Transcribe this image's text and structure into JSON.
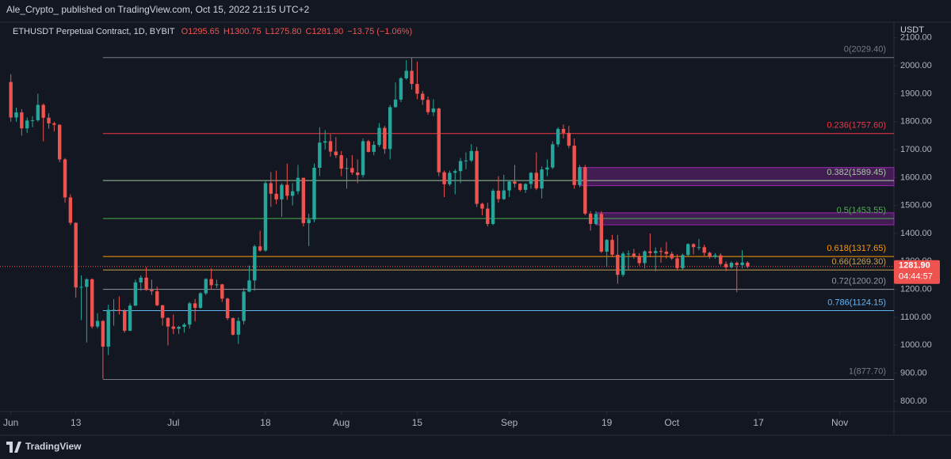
{
  "header": {
    "publisher": "Ale_Crypto_ published on TradingView.com, Oct 15, 2022 21:15 UTC+2",
    "footer": "TradingView"
  },
  "chart_data": {
    "type": "candlestick",
    "legend": {
      "symbol": "ETHUSDT Perpetual Contract, 1D, BYBIT",
      "items": [
        "O1295.65",
        "H1300.75",
        "L1275.80",
        "C1281.90",
        "−13.75 (−1.06%)"
      ]
    },
    "y_unit": "USDT",
    "last_price_label": "1281.90",
    "countdown": "04:44:57",
    "up_color": "#26a69a",
    "down_color": "#ef5350",
    "x": [
      "2022-06-01",
      "2022-06-02",
      "2022-06-03",
      "2022-06-04",
      "2022-06-05",
      "2022-06-06",
      "2022-06-07",
      "2022-06-08",
      "2022-06-09",
      "2022-06-10",
      "2022-06-11",
      "2022-06-12",
      "2022-06-13",
      "2022-06-14",
      "2022-06-15",
      "2022-06-16",
      "2022-06-17",
      "2022-06-18",
      "2022-06-19",
      "2022-06-20",
      "2022-06-21",
      "2022-06-22",
      "2022-06-23",
      "2022-06-24",
      "2022-06-25",
      "2022-06-26",
      "2022-06-27",
      "2022-06-28",
      "2022-06-29",
      "2022-06-30",
      "2022-07-01",
      "2022-07-02",
      "2022-07-03",
      "2022-07-04",
      "2022-07-05",
      "2022-07-06",
      "2022-07-07",
      "2022-07-08",
      "2022-07-09",
      "2022-07-10",
      "2022-07-11",
      "2022-07-12",
      "2022-07-13",
      "2022-07-14",
      "2022-07-15",
      "2022-07-16",
      "2022-07-17",
      "2022-07-18",
      "2022-07-19",
      "2022-07-20",
      "2022-07-21",
      "2022-07-22",
      "2022-07-23",
      "2022-07-24",
      "2022-07-25",
      "2022-07-26",
      "2022-07-27",
      "2022-07-28",
      "2022-07-29",
      "2022-07-30",
      "2022-07-31",
      "2022-08-01",
      "2022-08-02",
      "2022-08-03",
      "2022-08-04",
      "2022-08-05",
      "2022-08-06",
      "2022-08-07",
      "2022-08-08",
      "2022-08-09",
      "2022-08-10",
      "2022-08-11",
      "2022-08-12",
      "2022-08-13",
      "2022-08-14",
      "2022-08-15",
      "2022-08-16",
      "2022-08-17",
      "2022-08-18",
      "2022-08-19",
      "2022-08-20",
      "2022-08-21",
      "2022-08-22",
      "2022-08-23",
      "2022-08-24",
      "2022-08-25",
      "2022-08-26",
      "2022-08-27",
      "2022-08-28",
      "2022-08-29",
      "2022-08-30",
      "2022-08-31",
      "2022-09-01",
      "2022-09-02",
      "2022-09-03",
      "2022-09-04",
      "2022-09-05",
      "2022-09-06",
      "2022-09-07",
      "2022-09-08",
      "2022-09-09",
      "2022-09-10",
      "2022-09-11",
      "2022-09-12",
      "2022-09-13",
      "2022-09-14",
      "2022-09-15",
      "2022-09-16",
      "2022-09-17",
      "2022-09-18",
      "2022-09-19",
      "2022-09-20",
      "2022-09-21",
      "2022-09-22",
      "2022-09-23",
      "2022-09-24",
      "2022-09-25",
      "2022-09-26",
      "2022-09-27",
      "2022-09-28",
      "2022-09-29",
      "2022-09-30",
      "2022-10-01",
      "2022-10-02",
      "2022-10-03",
      "2022-10-04",
      "2022-10-05",
      "2022-10-06",
      "2022-10-07",
      "2022-10-08",
      "2022-10-09",
      "2022-10-10",
      "2022-10-11",
      "2022-10-12",
      "2022-10-13",
      "2022-10-14",
      "2022-10-15"
    ],
    "open": [
      1942,
      1815,
      1833,
      1776,
      1804,
      1805,
      1860,
      1814,
      1794,
      1789,
      1665,
      1529,
      1438,
      1207,
      1209,
      1236,
      1067,
      1087,
      995,
      1127,
      1127,
      1123,
      1052,
      1142,
      1225,
      1242,
      1198,
      1193,
      1143,
      1098,
      1067,
      1059,
      1066,
      1074,
      1150,
      1134,
      1186,
      1237,
      1215,
      1218,
      1167,
      1097,
      1038,
      1087,
      1192,
      1232,
      1354,
      1339,
      1580,
      1542,
      1522,
      1574,
      1535,
      1551,
      1599,
      1437,
      1450,
      1635,
      1725,
      1730,
      1693,
      1680,
      1632,
      1634,
      1618,
      1609,
      1730,
      1692,
      1717,
      1778,
      1702,
      1852,
      1879,
      1955,
      1982,
      1935,
      1900,
      1878,
      1834,
      1847,
      1619,
      1576,
      1617,
      1623,
      1659,
      1661,
      1695,
      1506,
      1489,
      1434,
      1553,
      1523,
      1554,
      1586,
      1578,
      1556,
      1577,
      1617,
      1561,
      1629,
      1636,
      1719,
      1774,
      1760,
      1714,
      1573,
      1637,
      1471,
      1434,
      1470,
      1335,
      1377,
      1324,
      1252,
      1328,
      1328,
      1317,
      1294,
      1336,
      1330,
      1337,
      1335,
      1327,
      1311,
      1276,
      1323,
      1362,
      1351,
      1351,
      1331,
      1316,
      1322,
      1291,
      1279,
      1295,
      1287,
      1295.65
    ],
    "high": [
      1970,
      1850,
      1845,
      1815,
      1820,
      1900,
      1865,
      1830,
      1800,
      1790,
      1670,
      1540,
      1440,
      1250,
      1240,
      1240,
      1115,
      1090,
      1145,
      1165,
      1175,
      1130,
      1150,
      1235,
      1250,
      1280,
      1235,
      1210,
      1145,
      1100,
      1110,
      1070,
      1080,
      1155,
      1165,
      1190,
      1240,
      1275,
      1235,
      1220,
      1170,
      1100,
      1100,
      1205,
      1285,
      1360,
      1410,
      1590,
      1620,
      1625,
      1580,
      1650,
      1580,
      1645,
      1600,
      1470,
      1650,
      1780,
      1770,
      1755,
      1745,
      1695,
      1670,
      1680,
      1665,
      1740,
      1735,
      1730,
      1795,
      1785,
      1860,
      1940,
      1960,
      2020,
      2030,
      2015,
      1910,
      1890,
      1880,
      1850,
      1625,
      1625,
      1630,
      1670,
      1690,
      1720,
      1710,
      1510,
      1510,
      1560,
      1605,
      1610,
      1590,
      1645,
      1580,
      1580,
      1620,
      1690,
      1640,
      1665,
      1730,
      1780,
      1790,
      1785,
      1740,
      1645,
      1645,
      1480,
      1480,
      1480,
      1380,
      1395,
      1395,
      1335,
      1340,
      1345,
      1330,
      1340,
      1400,
      1350,
      1350,
      1370,
      1335,
      1325,
      1328,
      1365,
      1365,
      1380,
      1360,
      1335,
      1330,
      1330,
      1300,
      1300,
      1300,
      1340,
      1300.75
    ],
    "low": [
      1800,
      1800,
      1750,
      1760,
      1780,
      1800,
      1730,
      1775,
      1765,
      1655,
      1510,
      1430,
      1170,
      1090,
      1010,
      1060,
      1060,
      880,
      965,
      1070,
      1110,
      1045,
      1050,
      1140,
      1195,
      1195,
      1180,
      1140,
      1070,
      1000,
      1040,
      1040,
      1045,
      1060,
      1085,
      1130,
      1180,
      1200,
      1205,
      1155,
      1090,
      1035,
      1005,
      1075,
      1190,
      1195,
      1335,
      1335,
      1495,
      1505,
      1460,
      1520,
      1500,
      1540,
      1425,
      1355,
      1440,
      1605,
      1700,
      1675,
      1670,
      1605,
      1560,
      1610,
      1580,
      1600,
      1690,
      1680,
      1710,
      1685,
      1665,
      1850,
      1870,
      1950,
      1915,
      1880,
      1860,
      1825,
      1820,
      1605,
      1530,
      1570,
      1540,
      1580,
      1630,
      1655,
      1495,
      1465,
      1425,
      1430,
      1510,
      1520,
      1530,
      1565,
      1550,
      1545,
      1560,
      1555,
      1525,
      1605,
      1630,
      1710,
      1740,
      1705,
      1560,
      1565,
      1465,
      1410,
      1430,
      1330,
      1280,
      1315,
      1220,
      1245,
      1270,
      1310,
      1285,
      1275,
      1315,
      1265,
      1295,
      1310,
      1305,
      1270,
      1270,
      1318,
      1325,
      1340,
      1320,
      1310,
      1310,
      1285,
      1265,
      1275,
      1190,
      1275,
      1275.8
    ],
    "close": [
      1815,
      1833,
      1776,
      1804,
      1805,
      1860,
      1814,
      1794,
      1789,
      1665,
      1529,
      1438,
      1207,
      1209,
      1236,
      1067,
      1087,
      995,
      1127,
      1127,
      1123,
      1052,
      1142,
      1225,
      1242,
      1198,
      1193,
      1143,
      1098,
      1067,
      1059,
      1066,
      1074,
      1150,
      1134,
      1186,
      1237,
      1215,
      1218,
      1167,
      1097,
      1038,
      1087,
      1192,
      1232,
      1354,
      1339,
      1580,
      1542,
      1522,
      1574,
      1535,
      1551,
      1599,
      1437,
      1450,
      1635,
      1725,
      1730,
      1693,
      1680,
      1632,
      1634,
      1618,
      1609,
      1730,
      1692,
      1717,
      1778,
      1702,
      1852,
      1879,
      1955,
      1982,
      1935,
      1900,
      1878,
      1834,
      1847,
      1619,
      1576,
      1617,
      1623,
      1659,
      1661,
      1695,
      1506,
      1489,
      1434,
      1553,
      1523,
      1554,
      1586,
      1578,
      1556,
      1577,
      1617,
      1561,
      1629,
      1636,
      1719,
      1774,
      1760,
      1714,
      1573,
      1637,
      1471,
      1434,
      1470,
      1335,
      1377,
      1324,
      1252,
      1328,
      1328,
      1317,
      1294,
      1336,
      1330,
      1337,
      1335,
      1327,
      1311,
      1276,
      1323,
      1362,
      1351,
      1351,
      1331,
      1316,
      1322,
      1291,
      1279,
      1295,
      1287,
      1296,
      1281.9
    ],
    "xlim": [
      "2022-05-30",
      "2022-11-11"
    ],
    "xticks": [
      {
        "value": "2022-06-01",
        "label": "Jun"
      },
      {
        "value": "2022-06-13",
        "label": "13"
      },
      {
        "value": "2022-07-01",
        "label": "Jul"
      },
      {
        "value": "2022-07-18",
        "label": "18"
      },
      {
        "value": "2022-08-01",
        "label": "Aug"
      },
      {
        "value": "2022-08-15",
        "label": "15"
      },
      {
        "value": "2022-09-01",
        "label": "Sep"
      },
      {
        "value": "2022-09-19",
        "label": "19"
      },
      {
        "value": "2022-10-01",
        "label": "Oct"
      },
      {
        "value": "2022-10-17",
        "label": "17"
      },
      {
        "value": "2022-11-01",
        "label": "Nov"
      }
    ],
    "ylim": [
      763,
      2156
    ],
    "yticks": [
      {
        "value": 800,
        "label": "800.00"
      },
      {
        "value": 900,
        "label": "900.00"
      },
      {
        "value": 1000,
        "label": "1000.00"
      },
      {
        "value": 1100,
        "label": "1100.00"
      },
      {
        "value": 1200,
        "label": "1200.00"
      },
      {
        "value": 1300,
        "label": "1300.00"
      },
      {
        "value": 1400,
        "label": "1400.00"
      },
      {
        "value": 1500,
        "label": "1500.00"
      },
      {
        "value": 1600,
        "label": "1600.00"
      },
      {
        "value": 1700,
        "label": "1700.00"
      },
      {
        "value": 1800,
        "label": "1800.00"
      },
      {
        "value": 1900,
        "label": "1900.00"
      },
      {
        "value": 2000,
        "label": "2000.00"
      },
      {
        "value": 2100,
        "label": "2100.00"
      }
    ],
    "fib_start": "2022-06-18",
    "fib_levels": [
      {
        "label": "0(2029.40)",
        "value": 2029.4,
        "color": "#787b86"
      },
      {
        "label": "0.236(1757.60)",
        "value": 1757.6,
        "color": "#f23645"
      },
      {
        "label": "0.382(1589.45)",
        "value": 1589.45,
        "color": "#a5c9a0"
      },
      {
        "label": "0.5(1453.55)",
        "value": 1453.55,
        "color": "#4caf50"
      },
      {
        "label": "0.618(1317.65)",
        "value": 1317.65,
        "color": "#ff9800"
      },
      {
        "label": "0.66(1269.30)",
        "value": 1269.3,
        "color": "#c9a14a"
      },
      {
        "label": "0.72(1200.20)",
        "value": 1200.2,
        "color": "#9598a1"
      },
      {
        "label": "0.786(1124.15)",
        "value": 1124.15,
        "color": "#64b5f6"
      },
      {
        "label": "1(877.70)",
        "value": 877.7,
        "color": "#787b86"
      }
    ],
    "zones": [
      {
        "start": "2022-09-14",
        "top": 1636,
        "bottom": 1571,
        "color": "#9c27b0"
      },
      {
        "start": "2022-09-17",
        "top": 1474,
        "bottom": 1431,
        "color": "#9c27b0"
      }
    ]
  }
}
